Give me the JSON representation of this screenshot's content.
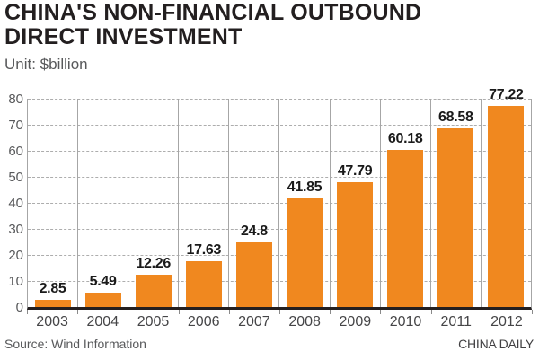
{
  "header": {
    "title_lines": [
      "CHINA'S NON-FINANCIAL OUTBOUND",
      "DIRECT INVESTMENT"
    ],
    "unit_label": "Unit: $billion"
  },
  "chart_data": {
    "type": "bar",
    "title": "CHINA'S NON-FINANCIAL OUTBOUND DIRECT INVESTMENT",
    "ylabel": "Unit: $billion",
    "xlabel": "",
    "categories": [
      "2003",
      "2004",
      "2005",
      "2006",
      "2007",
      "2008",
      "2009",
      "2010",
      "2011",
      "2012"
    ],
    "values": [
      2.85,
      5.49,
      12.26,
      17.63,
      24.8,
      41.85,
      47.79,
      60.18,
      68.58,
      77.22
    ],
    "value_labels": [
      "2.85",
      "5.49",
      "12.26",
      "17.63",
      "24.8",
      "41.85",
      "47.79",
      "60.18",
      "68.58",
      "77.22"
    ],
    "ylim": [
      0,
      80
    ],
    "yticks": [
      0,
      10,
      20,
      30,
      40,
      50,
      60,
      70,
      80
    ],
    "grid": "horizontal dashed gridlines with solid vertical column separators",
    "legend": "none",
    "bar_color": "#F0881F"
  },
  "footer": {
    "source": "Source: Wind Information",
    "credit": "CHINA DAILY"
  },
  "colors": {
    "bar_orange": "#F0881F",
    "title_text": "#231f20",
    "secondary_text": "#58595b",
    "gridline": "#adadad",
    "separator": "#a6a6a6",
    "baseline": "#231f20",
    "background": "#ffffff"
  }
}
